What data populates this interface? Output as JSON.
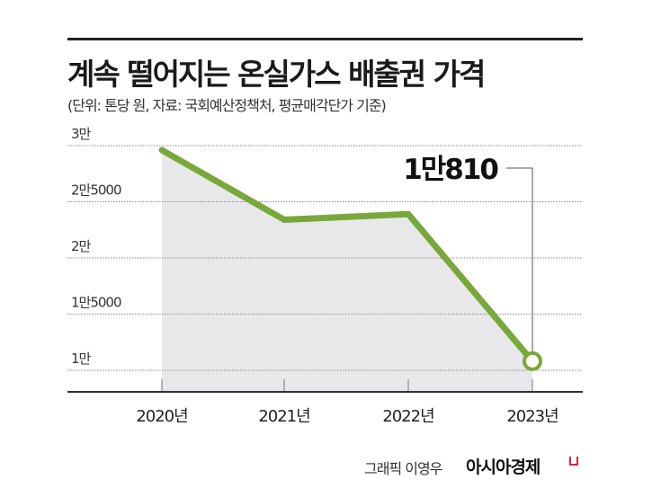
{
  "chart_data": {
    "type": "area",
    "title": "계속 떨어지는 온실가스 배출권 가격",
    "subtitle": "(단위: 톤당 원, 자료: 국회예산정책처, 평균매각단가 기준)",
    "categories": [
      "2020년",
      "2021년",
      "2022년",
      "2023년"
    ],
    "values": [
      29600,
      23400,
      23900,
      10810
    ],
    "y_ticks": [
      {
        "value": 30000,
        "label": "3만"
      },
      {
        "value": 25000,
        "label": "2만5000"
      },
      {
        "value": 20000,
        "label": "2만"
      },
      {
        "value": 15000,
        "label": "1만5000"
      },
      {
        "value": 10000,
        "label": "1만"
      }
    ],
    "annotation": {
      "category": "2023년",
      "label": "1만810"
    },
    "grid": true,
    "line_color": "#78a83a",
    "fill_color": "#e8e8ea"
  },
  "credit": "그래픽 이영우",
  "brand": "아시아경제"
}
